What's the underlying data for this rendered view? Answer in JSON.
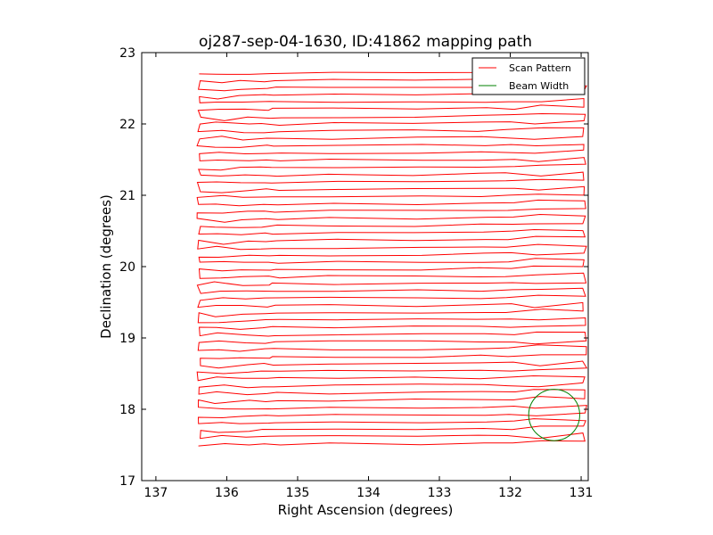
{
  "chart_data": {
    "type": "line",
    "title": "oj287-sep-04-1630, ID:41862 mapping path",
    "xlabel": "Right Ascension (degrees)",
    "ylabel": "Declination (degrees)",
    "xlim": [
      137.2,
      130.9
    ],
    "ylim": [
      17,
      23
    ],
    "x_ticks": [
      {
        "value": 137,
        "label": "137"
      },
      {
        "value": 136,
        "label": "136"
      },
      {
        "value": 135,
        "label": "135"
      },
      {
        "value": 134,
        "label": "134"
      },
      {
        "value": 133,
        "label": "133"
      },
      {
        "value": 132,
        "label": "132"
      },
      {
        "value": 131,
        "label": "131"
      }
    ],
    "y_ticks": [
      {
        "value": 17,
        "label": "17"
      },
      {
        "value": 18,
        "label": "18"
      },
      {
        "value": 19,
        "label": "19"
      },
      {
        "value": 20,
        "label": "20"
      },
      {
        "value": 21,
        "label": "21"
      },
      {
        "value": 22,
        "label": "22"
      },
      {
        "value": 23,
        "label": "23"
      }
    ],
    "grid": false,
    "legend_position": "top-right",
    "series": [
      {
        "name": "Scan Pattern",
        "color": "#ff0000",
        "ra_min": 130.92,
        "ra_max": 136.42,
        "dec_start": 17.5,
        "dec_end": 22.7,
        "row_count": 52
      },
      {
        "name": "Beam Width",
        "color": "#008000",
        "center_ra": 131.38,
        "center_dec": 17.92,
        "radius_deg": 0.36
      }
    ]
  }
}
